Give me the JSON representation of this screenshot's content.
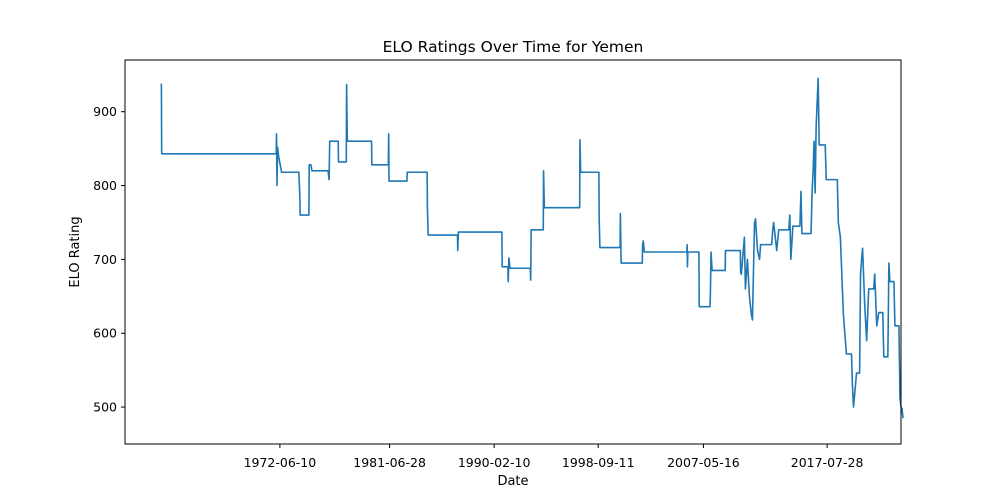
{
  "chart_data": {
    "type": "line",
    "title": "ELO Ratings Over Time for Yemen",
    "xlabel": "Date",
    "ylabel": "ELO Rating",
    "x_tick_labels": [
      "1972-06-10",
      "1981-06-28",
      "1990-02-10",
      "1998-09-11",
      "2007-05-16",
      "2017-07-28"
    ],
    "y_ticks": [
      500,
      600,
      700,
      800,
      900
    ],
    "xlim": [
      "1959-09-01",
      "2023-09-01"
    ],
    "ylim": [
      450,
      970
    ],
    "grid": false,
    "color": "#1f77b4",
    "series": [
      {
        "points": [
          [
            "1962-09-01",
            938
          ],
          [
            "1962-09-10",
            843
          ],
          [
            "1966-01-01",
            843
          ],
          [
            "1969-01-01",
            843
          ],
          [
            "1972-02-20",
            843
          ],
          [
            "1972-03-01",
            870
          ],
          [
            "1972-03-15",
            800
          ],
          [
            "1972-04-01",
            852
          ],
          [
            "1972-05-01",
            840
          ],
          [
            "1972-08-01",
            818
          ],
          [
            "1974-01-01",
            818
          ],
          [
            "1974-02-01",
            785
          ],
          [
            "1974-02-10",
            760
          ],
          [
            "1974-11-01",
            760
          ],
          [
            "1974-11-10",
            828
          ],
          [
            "1975-01-01",
            828
          ],
          [
            "1975-02-01",
            820
          ],
          [
            "1976-06-01",
            820
          ],
          [
            "1976-07-01",
            808
          ],
          [
            "1976-07-20",
            860
          ],
          [
            "1977-04-01",
            860
          ],
          [
            "1977-04-10",
            832
          ],
          [
            "1977-12-01",
            832
          ],
          [
            "1977-12-10",
            937
          ],
          [
            "1978-01-01",
            860
          ],
          [
            "1980-01-01",
            860
          ],
          [
            "1980-01-10",
            828
          ],
          [
            "1981-05-20",
            828
          ],
          [
            "1981-06-01",
            870
          ],
          [
            "1981-06-10",
            806
          ],
          [
            "1982-12-01",
            806
          ],
          [
            "1982-12-10",
            818
          ],
          [
            "1984-08-01",
            818
          ],
          [
            "1984-08-10",
            770
          ],
          [
            "1984-09-01",
            733
          ],
          [
            "1987-02-01",
            733
          ],
          [
            "1987-02-10",
            712
          ],
          [
            "1987-03-01",
            737
          ],
          [
            "1990-10-01",
            737
          ],
          [
            "1990-10-10",
            690
          ],
          [
            "1991-04-01",
            690
          ],
          [
            "1991-04-10",
            670
          ],
          [
            "1991-05-01",
            702
          ],
          [
            "1991-06-01",
            688
          ],
          [
            "1993-02-01",
            688
          ],
          [
            "1993-02-15",
            672
          ],
          [
            "1993-03-01",
            740
          ],
          [
            "1994-03-01",
            740
          ],
          [
            "1994-03-10",
            820
          ],
          [
            "1994-04-01",
            770
          ],
          [
            "1997-03-01",
            770
          ],
          [
            "1997-03-10",
            862
          ],
          [
            "1997-04-01",
            818
          ],
          [
            "1998-10-01",
            818
          ],
          [
            "1998-10-10",
            755
          ],
          [
            "1998-11-01",
            716
          ],
          [
            "2000-07-01",
            716
          ],
          [
            "2000-07-10",
            762
          ],
          [
            "2000-08-01",
            695
          ],
          [
            "2002-05-01",
            695
          ],
          [
            "2002-05-10",
            720
          ],
          [
            "2002-06-01",
            725
          ],
          [
            "2002-07-01",
            710
          ],
          [
            "2006-01-01",
            710
          ],
          [
            "2006-01-10",
            720
          ],
          [
            "2006-01-20",
            690
          ],
          [
            "2006-02-01",
            710
          ],
          [
            "2007-01-01",
            710
          ],
          [
            "2007-01-10",
            636
          ],
          [
            "2007-12-01",
            636
          ],
          [
            "2007-12-10",
            648
          ],
          [
            "2008-01-01",
            710
          ],
          [
            "2008-02-01",
            685
          ],
          [
            "2009-03-01",
            685
          ],
          [
            "2009-03-10",
            712
          ],
          [
            "2010-06-01",
            712
          ],
          [
            "2010-06-10",
            682
          ],
          [
            "2010-07-01",
            680
          ],
          [
            "2010-10-01",
            730
          ],
          [
            "2010-11-01",
            660
          ],
          [
            "2011-01-01",
            700
          ],
          [
            "2011-03-01",
            650
          ],
          [
            "2011-05-01",
            625
          ],
          [
            "2011-06-01",
            618
          ],
          [
            "2011-08-01",
            748
          ],
          [
            "2011-09-01",
            755
          ],
          [
            "2011-11-01",
            712
          ],
          [
            "2012-01-01",
            700
          ],
          [
            "2012-02-01",
            720
          ],
          [
            "2013-01-01",
            720
          ],
          [
            "2013-02-01",
            740
          ],
          [
            "2013-03-01",
            750
          ],
          [
            "2013-06-01",
            712
          ],
          [
            "2013-08-01",
            740
          ],
          [
            "2014-06-01",
            740
          ],
          [
            "2014-07-01",
            760
          ],
          [
            "2014-08-01",
            700
          ],
          [
            "2014-10-01",
            745
          ],
          [
            "2015-05-01",
            745
          ],
          [
            "2015-06-01",
            792
          ],
          [
            "2015-07-01",
            735
          ],
          [
            "2016-04-01",
            735
          ],
          [
            "2016-05-01",
            790
          ],
          [
            "2016-06-01",
            820
          ],
          [
            "2016-07-01",
            860
          ],
          [
            "2016-08-01",
            790
          ],
          [
            "2016-09-01",
            880
          ],
          [
            "2016-11-01",
            945
          ],
          [
            "2016-12-01",
            855
          ],
          [
            "2017-06-01",
            855
          ],
          [
            "2017-07-01",
            808
          ],
          [
            "2018-06-01",
            808
          ],
          [
            "2018-07-01",
            750
          ],
          [
            "2018-09-01",
            730
          ],
          [
            "2018-12-01",
            625
          ],
          [
            "2019-03-01",
            572
          ],
          [
            "2019-08-01",
            572
          ],
          [
            "2019-09-01",
            528
          ],
          [
            "2019-10-01",
            500
          ],
          [
            "2020-01-01",
            546
          ],
          [
            "2020-04-01",
            546
          ],
          [
            "2020-05-01",
            680
          ],
          [
            "2020-06-01",
            700
          ],
          [
            "2020-07-01",
            715
          ],
          [
            "2020-09-01",
            640
          ],
          [
            "2020-11-01",
            590
          ],
          [
            "2021-01-01",
            660
          ],
          [
            "2021-06-01",
            660
          ],
          [
            "2021-07-01",
            680
          ],
          [
            "2021-09-01",
            610
          ],
          [
            "2021-11-01",
            628
          ],
          [
            "2022-03-01",
            628
          ],
          [
            "2022-04-01",
            568
          ],
          [
            "2022-08-01",
            568
          ],
          [
            "2022-09-01",
            695
          ],
          [
            "2022-10-01",
            670
          ],
          [
            "2023-02-01",
            670
          ],
          [
            "2023-03-01",
            610
          ],
          [
            "2023-07-01",
            610
          ],
          [
            "2023-08-01",
            512
          ],
          [
            "2023-09-01",
            500
          ],
          [
            "2023-10-01",
            498
          ],
          [
            "2023-11-01",
            485
          ]
        ]
      }
    ]
  }
}
